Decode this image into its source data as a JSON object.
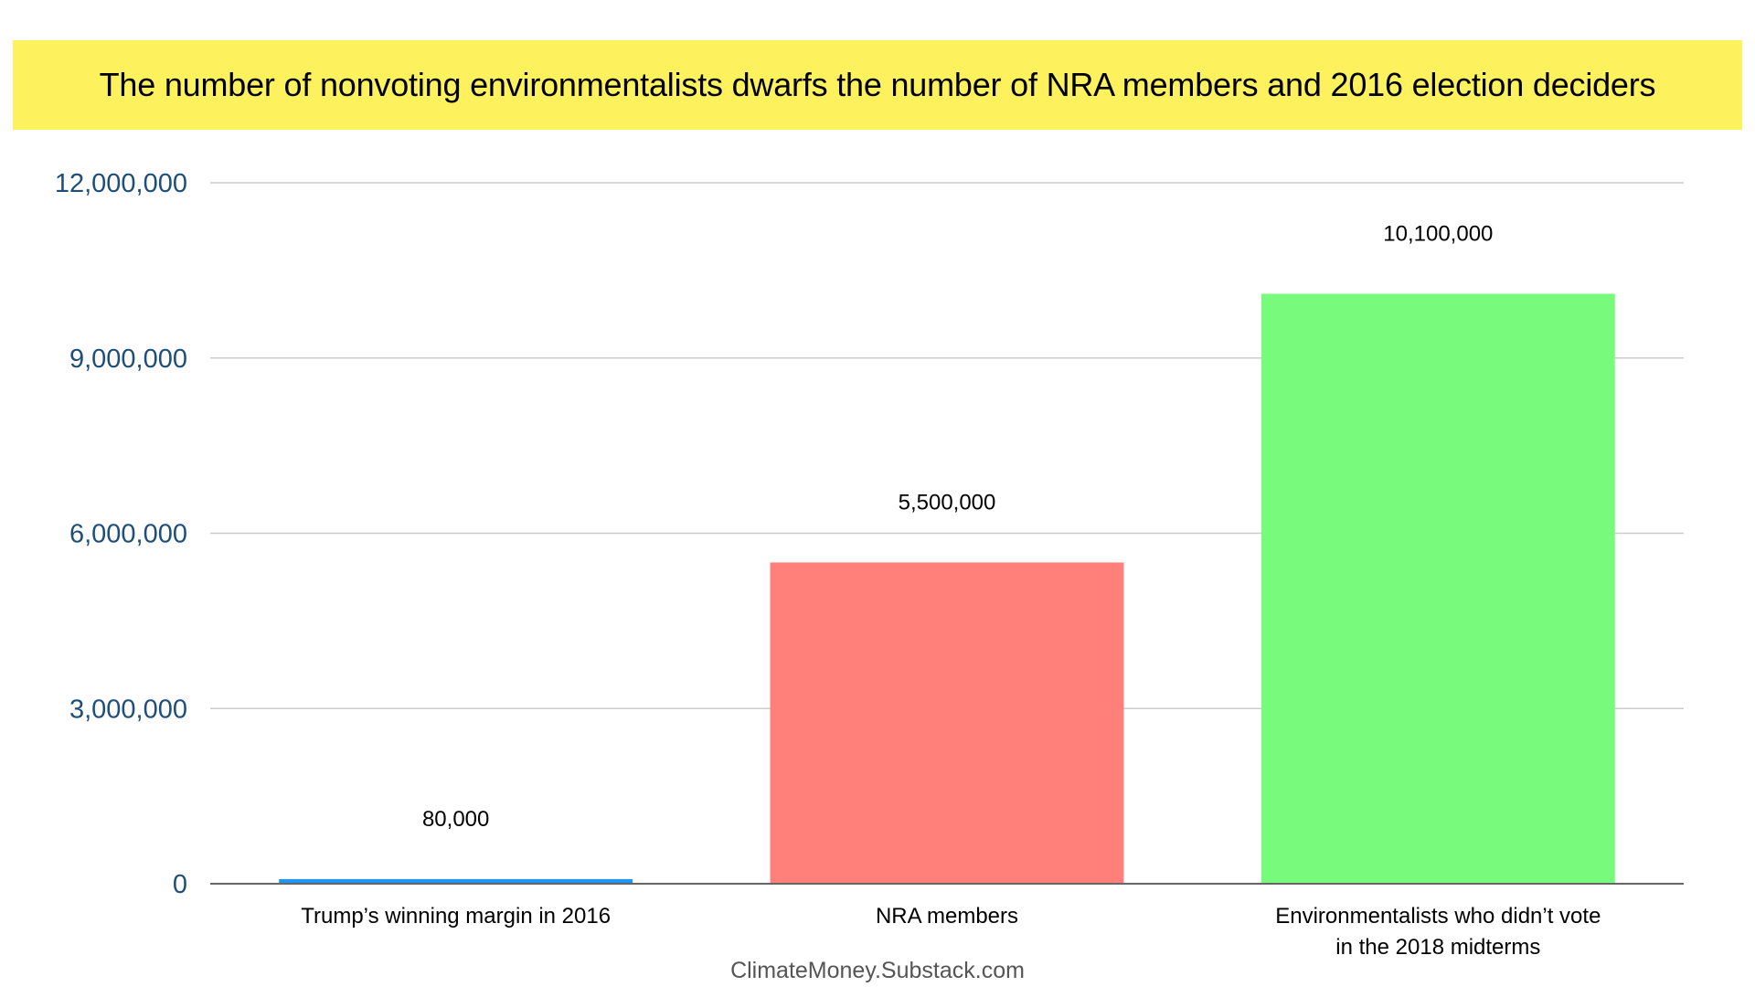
{
  "colors": {
    "title_background": "#fdf15d",
    "axis_tick": "#1f4e79",
    "grid": "#cccccc",
    "baseline": "#666666"
  },
  "chart_data": {
    "type": "bar",
    "title": "The number of nonvoting environmentalists dwarfs the number of NRA members and 2016 election deciders",
    "xlabel": "",
    "ylabel": "",
    "categories": [
      [
        "Trump’s winning margin in 2016"
      ],
      [
        "NRA members"
      ],
      [
        "Environmentalists who didn’t vote",
        "in the 2018 midterms"
      ]
    ],
    "values": [
      80000,
      5500000,
      10100000
    ],
    "data_labels": [
      "80,000",
      "5,500,000",
      "10,100,000"
    ],
    "bar_colors": [
      "#2196f3",
      "#ff7f7a",
      "#78fb7c"
    ],
    "ylim": [
      0,
      12000000
    ],
    "yticks": [
      0,
      3000000,
      6000000,
      9000000,
      12000000
    ],
    "ytick_labels": [
      "0",
      "3,000,000",
      "6,000,000",
      "9,000,000",
      "12,000,000"
    ],
    "grid": true,
    "legend": "none"
  },
  "source": "ClimateMoney.Substack.com"
}
